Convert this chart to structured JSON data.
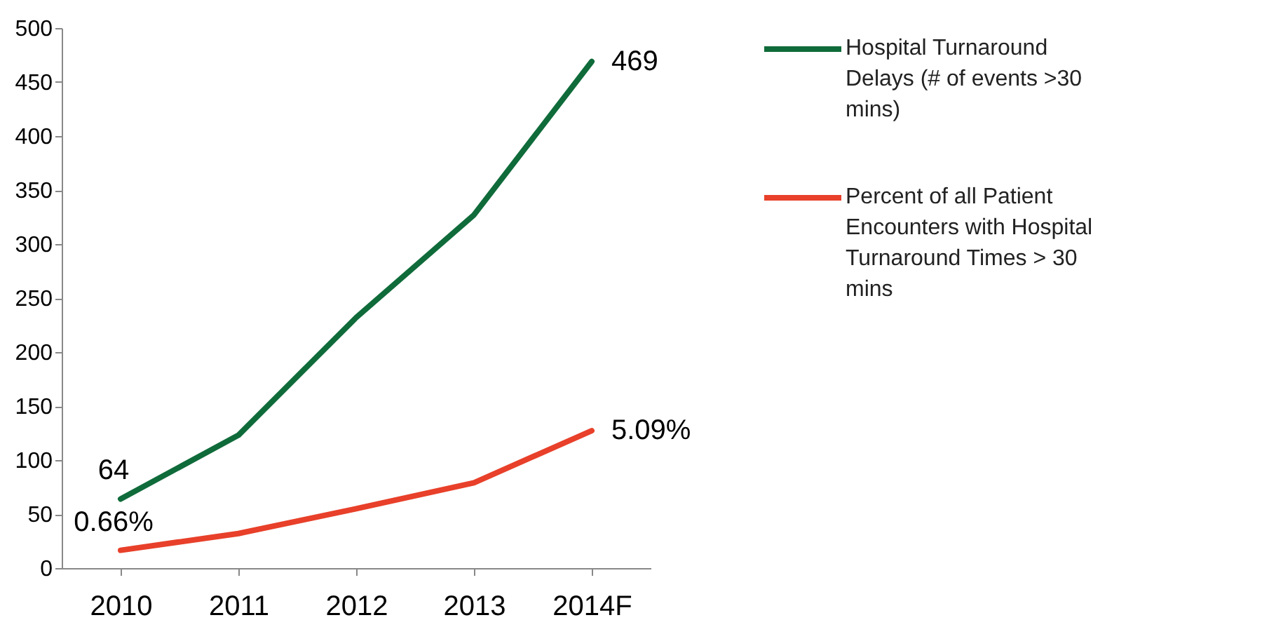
{
  "chart_data": {
    "type": "line",
    "categories": [
      "2010",
      "2011",
      "2012",
      "2013",
      "2014F"
    ],
    "series": [
      {
        "name": "Hospital Turnaround Delays (# of events >30 mins)",
        "color": "#0f6b3a",
        "values": [
          64,
          123,
          232,
          327,
          469
        ],
        "value_labels": [
          "64",
          null,
          null,
          null,
          "469"
        ]
      },
      {
        "name": "Percent of all Patient Encounters with Hospital Turnaround Times > 30 mins",
        "color": "#e8402a",
        "axis": "y2",
        "values": [
          0.66,
          1.28,
          2.2,
          3.16,
          5.09
        ],
        "value_labels": [
          "0.66%",
          null,
          null,
          null,
          "5.09%"
        ]
      }
    ],
    "ylim": [
      0,
      500
    ],
    "yticks": [
      0,
      50,
      100,
      150,
      200,
      250,
      300,
      350,
      400,
      450,
      500
    ],
    "y2lim": [
      0,
      20
    ],
    "tick_labels": "xy",
    "grid": false,
    "legend": "right",
    "marker": "none",
    "line_style": "solid"
  }
}
